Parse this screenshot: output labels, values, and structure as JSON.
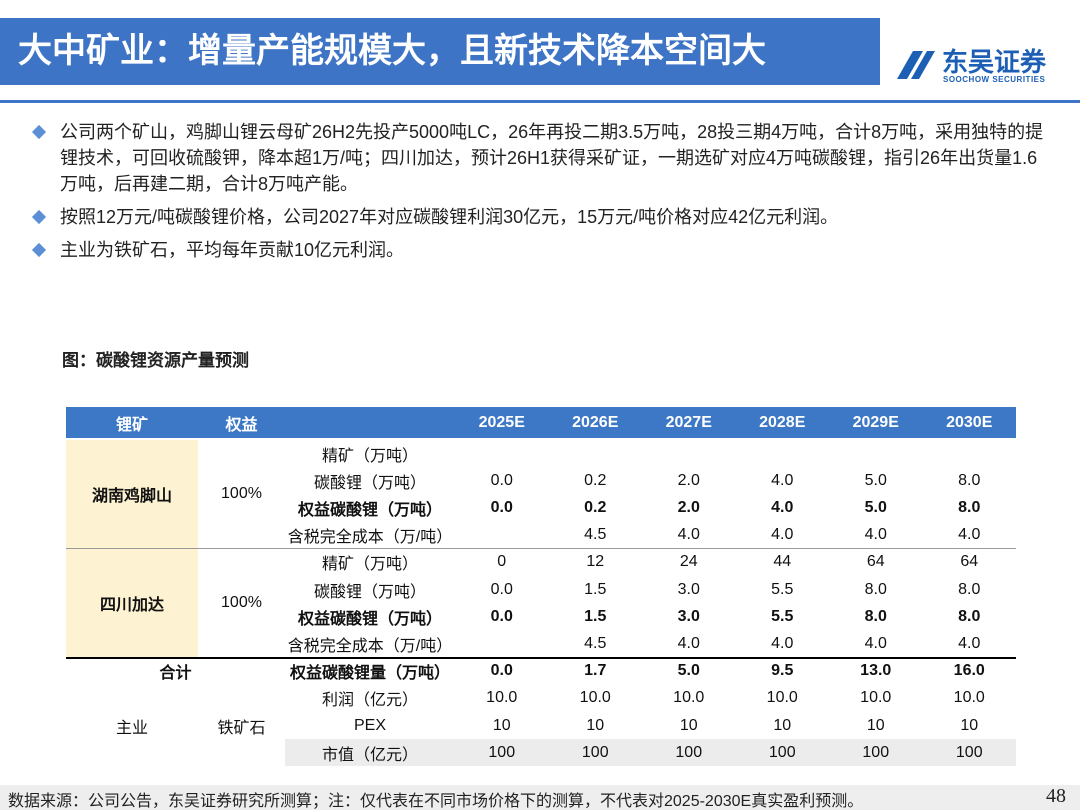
{
  "header": {
    "title": "大中矿业：增量产能规模大，且新技术降本空间大",
    "logo_cn": "东吴证券",
    "logo_en": "SOOCHOW SECURITIES"
  },
  "bullets": [
    "公司两个矿山，鸡脚山锂云母矿26H2先投产5000吨LC，26年再投二期3.5万吨，28投三期4万吨，合计8万吨，采用独特的提锂技术，可回收硫酸钾，降本超1万/吨；四川加达，预计26H1获得采矿证，一期选矿对应4万吨碳酸锂，指引26年出货量1.6万吨，后再建二期，合计8万吨产能。",
    "按照12万元/吨碳酸锂价格，公司2027年对应碳酸锂利润30亿元，15万元/吨价格对应42亿元利润。",
    "主业为铁矿石，平均每年贡献10亿元利润。"
  ],
  "caption": "图：碳酸锂资源产量预测",
  "table": {
    "header": [
      "锂矿",
      "权益",
      "2025E",
      "2026E",
      "2027E",
      "2028E",
      "2029E",
      "2030E"
    ],
    "groups": [
      {
        "name": "湖南鸡脚山",
        "equity": "100%",
        "rows": [
          {
            "label": "精矿（万吨）",
            "values": [
              null,
              null,
              null,
              null,
              null,
              null
            ]
          },
          {
            "label": "碳酸锂（万吨）",
            "values": [
              "0.0",
              "0.2",
              "2.0",
              "4.0",
              "5.0",
              "8.0"
            ]
          },
          {
            "label": "权益碳酸锂（万吨）",
            "values": [
              "0.0",
              "0.2",
              "2.0",
              "4.0",
              "5.0",
              "8.0"
            ]
          },
          {
            "label": "含税完全成本（万/吨）",
            "values": [
              null,
              "4.5",
              "4.0",
              "4.0",
              "4.0",
              "4.0"
            ]
          }
        ]
      },
      {
        "name": "四川加达",
        "equity": "100%",
        "rows": [
          {
            "label": "精矿（万吨）",
            "values": [
              "0",
              "12",
              "24",
              "44",
              "64",
              "64"
            ]
          },
          {
            "label": "碳酸锂（万吨）",
            "values": [
              "0.0",
              "1.5",
              "3.0",
              "5.5",
              "8.0",
              "8.0"
            ]
          },
          {
            "label": "权益碳酸锂（万吨）",
            "values": [
              "0.0",
              "1.5",
              "3.0",
              "5.5",
              "8.0",
              "8.0"
            ]
          },
          {
            "label": "含税完全成本（万/吨）",
            "values": [
              null,
              "4.5",
              "4.0",
              "4.0",
              "4.0",
              "4.0"
            ]
          }
        ]
      }
    ],
    "total": {
      "name": "合计",
      "label": "权益碳酸锂量（万吨）",
      "values": [
        "0.0",
        "1.7",
        "5.0",
        "9.5",
        "13.0",
        "16.0"
      ]
    },
    "main": {
      "name": "主业",
      "equity": "铁矿石",
      "rows": [
        {
          "label": "利润（亿元）",
          "values": [
            "10.0",
            "10.0",
            "10.0",
            "10.0",
            "10.0",
            "10.0"
          ]
        },
        {
          "label": "PEX",
          "values": [
            "10",
            "10",
            "10",
            "10",
            "10",
            "10"
          ]
        },
        {
          "label": "市值（亿元）",
          "values": [
            "100",
            "100",
            "100",
            "100",
            "100",
            "100"
          ]
        }
      ]
    }
  },
  "footer": {
    "source": "数据来源：公司公告，东吴证券研究所测算；注：仅代表在不同市场价格下的测算，不代表对2025-2030E真实盈利预测。",
    "page": "48"
  }
}
